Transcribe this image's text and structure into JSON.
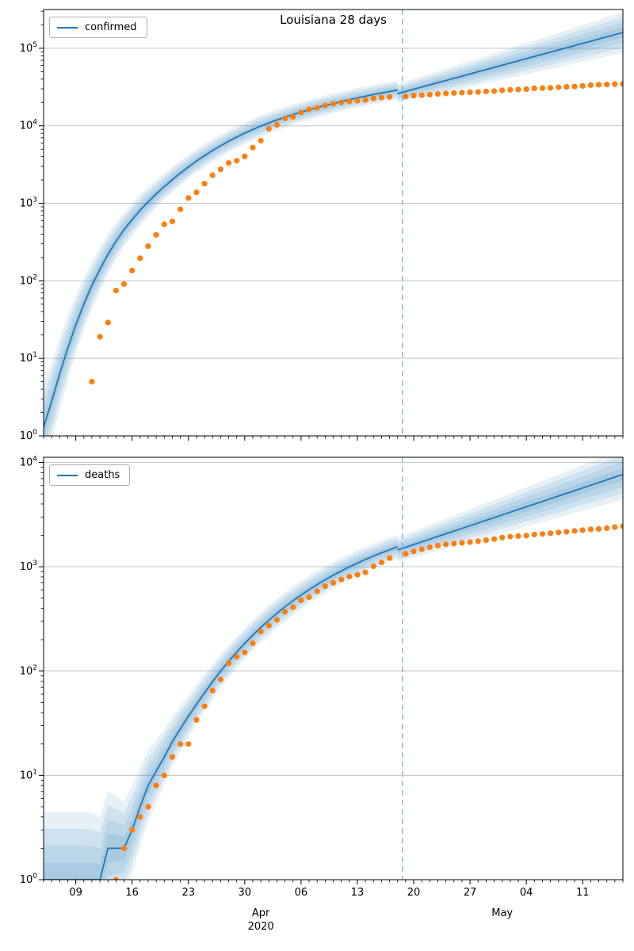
{
  "title": "Louisiana 28 days",
  "colors": {
    "model_line": "#1f77b4",
    "confidence_band": "#1f77b4",
    "observed_points": "#ff7f0e",
    "forecast_divider": "#8ab9d9",
    "gridline": "#c3c3c3",
    "axis": "#000000"
  },
  "x_axis": {
    "domain_days": 72,
    "major_ticks": [
      {
        "label": "09",
        "day": 4
      },
      {
        "label": "16",
        "day": 11
      },
      {
        "label": "23",
        "day": 18
      },
      {
        "label": "30",
        "day": 25
      },
      {
        "label": "06",
        "day": 32
      },
      {
        "label": "13",
        "day": 39
      },
      {
        "label": "20",
        "day": 46
      },
      {
        "label": "27",
        "day": 53
      },
      {
        "label": "04",
        "day": 60
      },
      {
        "label": "11",
        "day": 67
      }
    ],
    "month_labels": [
      {
        "label": "Apr",
        "year": "2020",
        "day": 27
      },
      {
        "label": "May",
        "year": "",
        "day": 57
      }
    ],
    "forecast_divider_day": 44.6
  },
  "chart_data": [
    {
      "type": "line",
      "legend": "confirmed",
      "y_scale": "log10",
      "y_range_exp": [
        0,
        5.5
      ],
      "y_tick_exponents": [
        0,
        1,
        2,
        3,
        4,
        5
      ],
      "series": {
        "fit": {
          "start_day": 0,
          "median": [
            1.3,
            2.8,
            6.3,
            13.5,
            27,
            50,
            87,
            141,
            219,
            324,
            457,
            617,
            813,
            1047,
            1318,
            1641,
            2018,
            2455,
            2951,
            3508,
            4121,
            4797,
            5534,
            6324,
            7161,
            8035,
            8954,
            9908,
            10889,
            11885,
            12912,
            13964,
            15031,
            16106,
            17179,
            18281,
            19409,
            20559,
            21727,
            22909,
            24099,
            25293,
            26485,
            27669,
            28840
          ],
          "band_halfwidth_log10": [
            0.55,
            0.5,
            0.46,
            0.42,
            0.38,
            0.34,
            0.31,
            0.28,
            0.26,
            0.24,
            0.22,
            0.21,
            0.2,
            0.19,
            0.18,
            0.17,
            0.165,
            0.16,
            0.155,
            0.15,
            0.15,
            0.148,
            0.146,
            0.144,
            0.142,
            0.14,
            0.14,
            0.138,
            0.136,
            0.134,
            0.132,
            0.13,
            0.13,
            0.13,
            0.128,
            0.128,
            0.126,
            0.126,
            0.125,
            0.125,
            0.124,
            0.124,
            0.123,
            0.123,
            0.122
          ]
        },
        "forecast": {
          "start_day": 44,
          "median": [
            26000,
            27750,
            29600,
            31600,
            33700,
            36000,
            38400,
            41000,
            43700,
            46600,
            49800,
            53100,
            56700,
            60500,
            64500,
            68800,
            73400,
            78300,
            83600,
            89200,
            95200,
            101500,
            108300,
            115600,
            123300,
            131600,
            140400,
            149800,
            159800
          ],
          "band_halfwidth_log10": [
            0.122,
            0.127,
            0.132,
            0.137,
            0.142,
            0.147,
            0.152,
            0.157,
            0.162,
            0.167,
            0.172,
            0.177,
            0.182,
            0.187,
            0.192,
            0.197,
            0.202,
            0.207,
            0.212,
            0.217,
            0.222,
            0.227,
            0.232,
            0.237,
            0.242,
            0.247,
            0.252,
            0.257,
            0.262
          ]
        },
        "observed": {
          "start_day": 6,
          "values": [
            5,
            19,
            29,
            75,
            91,
            136,
            196,
            280,
            392,
            537,
            585,
            837,
            1172,
            1388,
            1795,
            2305,
            2746,
            3315,
            3540,
            4025,
            5237,
            6424,
            9150,
            10297,
            12496,
            13010,
            14867,
            16284,
            17030,
            18283,
            19253,
            20014,
            20595,
            21016,
            21518,
            22532,
            23118,
            23580,
            null,
            23928,
            24523,
            24854,
            25258,
            25739,
            26140,
            26512,
            26773,
            27068,
            27286,
            27660,
            27968,
            28711,
            29141,
            29340,
            29673,
            30399,
            30652,
            30855,
            31417,
            31815,
            32050,
            32662,
            33489,
            33837,
            34117,
            34432,
            34709
          ]
        }
      }
    },
    {
      "type": "line",
      "legend": "deaths",
      "y_scale": "log10",
      "y_range_exp": [
        0,
        4.05
      ],
      "y_tick_exponents": [
        0,
        1,
        2,
        3,
        4
      ],
      "series": {
        "fit": {
          "start_day": 0,
          "median": [
            1,
            1,
            1,
            1,
            1,
            1,
            1,
            1,
            2,
            2,
            2,
            3,
            5,
            8,
            11,
            15,
            21,
            28,
            37,
            48,
            62,
            79,
            100,
            124,
            152,
            184,
            221,
            262,
            308,
            358,
            413,
            472,
            536,
            604,
            676,
            752,
            831,
            913,
            998,
            1086,
            1176,
            1268,
            1362,
            1457,
            1553
          ],
          "band_halfwidth_log10": [
            0.65,
            0.65,
            0.65,
            0.65,
            0.65,
            0.65,
            0.64,
            0.6,
            0.55,
            0.5,
            0.45,
            0.42,
            0.38,
            0.34,
            0.3,
            0.27,
            0.24,
            0.22,
            0.2,
            0.19,
            0.18,
            0.17,
            0.16,
            0.155,
            0.15,
            0.15,
            0.148,
            0.146,
            0.144,
            0.142,
            0.14,
            0.138,
            0.136,
            0.134,
            0.132,
            0.13,
            0.128,
            0.126,
            0.124,
            0.122,
            0.12,
            0.119,
            0.118,
            0.117,
            0.116
          ]
        },
        "forecast": {
          "start_day": 44,
          "median": [
            1450,
            1540,
            1635,
            1735,
            1840,
            1955,
            2075,
            2200,
            2335,
            2480,
            2630,
            2790,
            2960,
            3145,
            3340,
            3540,
            3760,
            3990,
            4235,
            4495,
            4770,
            5065,
            5375,
            5705,
            6055,
            6425,
            6820,
            7240,
            7685
          ],
          "band_halfwidth_log10": [
            0.116,
            0.12,
            0.125,
            0.129,
            0.134,
            0.138,
            0.143,
            0.147,
            0.152,
            0.156,
            0.161,
            0.165,
            0.17,
            0.174,
            0.179,
            0.183,
            0.188,
            0.192,
            0.197,
            0.201,
            0.206,
            0.21,
            0.215,
            0.219,
            0.224,
            0.228,
            0.233,
            0.237,
            0.242
          ]
        },
        "observed": {
          "start_day": 9,
          "values": [
            1,
            2,
            3,
            4,
            5,
            8,
            10,
            15,
            20,
            20,
            34,
            46,
            65,
            83,
            119,
            137,
            151,
            185,
            239,
            273,
            310,
            370,
            409,
            477,
            512,
            582,
            652,
            702,
            755,
            806,
            840,
            884,
            1013,
            1103,
            1213,
            null,
            1328,
            1405,
            1473,
            1540,
            1599,
            1644,
            1670,
            1697,
            1727,
            1758,
            1801,
            1845,
            1905,
            1950,
            1969,
            1991,
            2042,
            2064,
            2094,
            2135,
            2167,
            2208,
            2242,
            2286,
            2308,
            2347,
            2396,
            2448
          ]
        }
      }
    }
  ]
}
